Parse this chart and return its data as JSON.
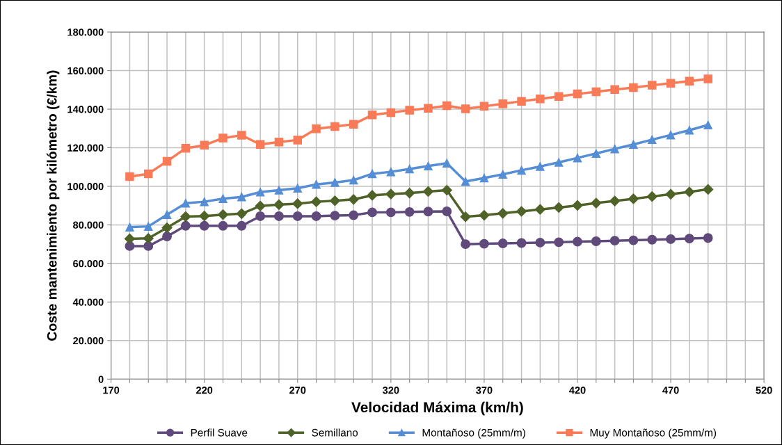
{
  "chart_data": {
    "type": "line",
    "xlabel": "Velocidad Máxima (km/h)",
    "ylabel": "Coste mantenimiento por kilómetro (€/km)",
    "x": [
      180,
      190,
      200,
      210,
      220,
      230,
      240,
      250,
      260,
      270,
      280,
      290,
      300,
      310,
      320,
      330,
      340,
      350,
      360,
      370,
      380,
      390,
      400,
      410,
      420,
      430,
      440,
      450,
      460,
      470,
      480,
      490
    ],
    "series": [
      {
        "name": "Perfil Suave",
        "color": "#604a7b",
        "marker": "circle",
        "values": [
          69000,
          69000,
          74000,
          79500,
          79500,
          79500,
          79500,
          84500,
          84500,
          84500,
          84500,
          84800,
          85000,
          86500,
          86500,
          86700,
          86900,
          87000,
          70000,
          70200,
          70400,
          70600,
          70800,
          71000,
          71300,
          71500,
          71800,
          72000,
          72300,
          72600,
          72900,
          73200
        ]
      },
      {
        "name": "Semillano",
        "color": "#4f6228",
        "marker": "diamond",
        "values": [
          72800,
          73000,
          78500,
          84300,
          84600,
          85300,
          85800,
          89800,
          90500,
          91000,
          92000,
          92500,
          93200,
          95300,
          96000,
          96500,
          97300,
          98000,
          84200,
          85000,
          86000,
          87000,
          88000,
          89000,
          90100,
          91300,
          92400,
          93500,
          94700,
          95900,
          97100,
          98400
        ]
      },
      {
        "name": "Montañoso (25mm/m)",
        "color": "#558ed5",
        "marker": "triangle",
        "values": [
          78800,
          79200,
          85300,
          91200,
          92000,
          93600,
          94500,
          97000,
          98000,
          99000,
          101000,
          102000,
          103200,
          106500,
          107500,
          109000,
          110500,
          112000,
          102500,
          104300,
          106200,
          108300,
          110300,
          112400,
          114700,
          117000,
          119400,
          121700,
          124200,
          126600,
          129100,
          131800
        ]
      },
      {
        "name": "Muy Montañoso (25mm/m)",
        "color": "#f97a57",
        "marker": "square",
        "values": [
          105000,
          106500,
          113000,
          119700,
          121300,
          125000,
          126500,
          121700,
          123000,
          124000,
          129800,
          131000,
          132200,
          137000,
          138200,
          139500,
          140500,
          141800,
          140200,
          141500,
          142800,
          144100,
          145300,
          146600,
          147900,
          149000,
          150200,
          151200,
          152400,
          153400,
          154500,
          155700
        ]
      }
    ],
    "xlim": [
      170,
      520
    ],
    "xticks": [
      {
        "value": 170,
        "label": "170"
      },
      {
        "value": 180,
        "label": null
      },
      {
        "value": 190,
        "label": null
      },
      {
        "value": 200,
        "label": null
      },
      {
        "value": 210,
        "label": null
      },
      {
        "value": 220,
        "label": "220"
      },
      {
        "value": 230,
        "label": null
      },
      {
        "value": 240,
        "label": null
      },
      {
        "value": 250,
        "label": null
      },
      {
        "value": 260,
        "label": null
      },
      {
        "value": 270,
        "label": "270"
      },
      {
        "value": 280,
        "label": null
      },
      {
        "value": 290,
        "label": null
      },
      {
        "value": 300,
        "label": null
      },
      {
        "value": 310,
        "label": null
      },
      {
        "value": 320,
        "label": "320"
      },
      {
        "value": 330,
        "label": null
      },
      {
        "value": 340,
        "label": null
      },
      {
        "value": 350,
        "label": null
      },
      {
        "value": 360,
        "label": null
      },
      {
        "value": 370,
        "label": "370"
      },
      {
        "value": 380,
        "label": null
      },
      {
        "value": 390,
        "label": null
      },
      {
        "value": 400,
        "label": null
      },
      {
        "value": 410,
        "label": null
      },
      {
        "value": 420,
        "label": "420"
      },
      {
        "value": 430,
        "label": null
      },
      {
        "value": 440,
        "label": null
      },
      {
        "value": 450,
        "label": null
      },
      {
        "value": 460,
        "label": null
      },
      {
        "value": 470,
        "label": "470"
      },
      {
        "value": 480,
        "label": null
      },
      {
        "value": 490,
        "label": null
      },
      {
        "value": 500,
        "label": null
      },
      {
        "value": 510,
        "label": null
      },
      {
        "value": 520,
        "label": "520"
      }
    ],
    "ylim": [
      0,
      180000
    ],
    "yticks": [
      0,
      {
        "value": 20000,
        "label": "20.000"
      },
      {
        "value": 40000,
        "label": "40.000"
      },
      {
        "value": 60000,
        "label": "60.000"
      },
      {
        "value": 80000,
        "label": "80.000"
      },
      {
        "value": 100000,
        "label": "100.000"
      },
      {
        "value": 120000,
        "label": "120.000"
      },
      {
        "value": 140000,
        "label": "140.000"
      },
      {
        "value": 160000,
        "label": "160.000"
      },
      {
        "value": 180000,
        "label": "180.000"
      }
    ],
    "grid": true,
    "legend": "bottom",
    "line_style": "solid"
  }
}
